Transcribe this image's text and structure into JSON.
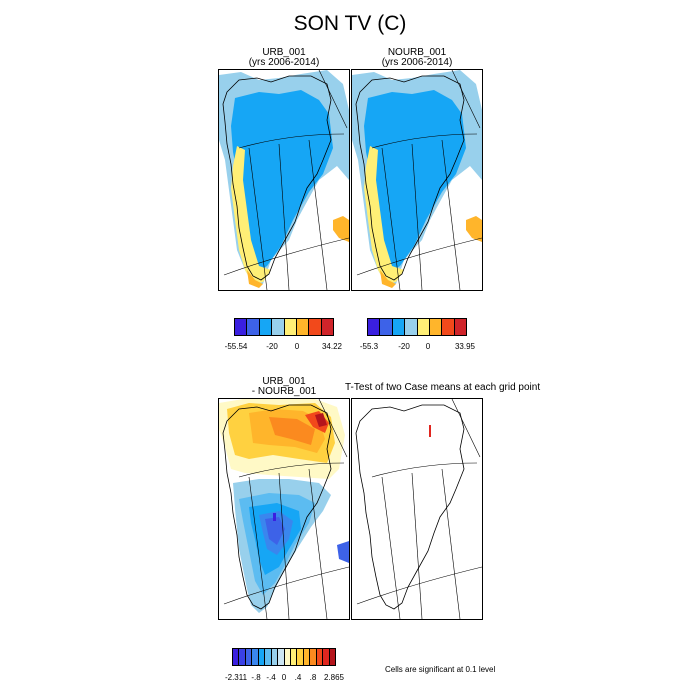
{
  "figure": {
    "title": "SON TV (C)"
  },
  "panels": {
    "urb": {
      "name": "URB_001",
      "period": "(yrs 2006-2014)"
    },
    "nourb": {
      "name": "NOURB_001",
      "period": "(yrs 2006-2014)"
    },
    "diff": {
      "line1": "URB_001",
      "line2": "- NOURB_001"
    },
    "ttest": {
      "title": "T-Test of two Case means at each grid point"
    }
  },
  "colorbars": {
    "urb": {
      "colors": [
        "#3a1fe0",
        "#3d62e8",
        "#16a6f5",
        "#98d0ec",
        "#ffef76",
        "#ffb52b",
        "#f2491b",
        "#d0242a"
      ],
      "labels": [
        "-55.54",
        "-20",
        "0",
        "34.22"
      ]
    },
    "nourb": {
      "colors": [
        "#3a1fe0",
        "#3d62e8",
        "#16a6f5",
        "#98d0ec",
        "#ffef76",
        "#ffb52b",
        "#f2491b",
        "#d0242a"
      ],
      "labels": [
        "-55.3",
        "-20",
        "0",
        "33.95"
      ]
    },
    "diff": {
      "colors": [
        "#3a1fe0",
        "#3a40e6",
        "#3d62e8",
        "#3a86ee",
        "#16a6f5",
        "#5cbcf1",
        "#98d0ec",
        "#cde6f3",
        "#fff9c6",
        "#ffef76",
        "#ffd140",
        "#ffb52b",
        "#fb8a1f",
        "#f2491b",
        "#e0261f",
        "#b4151c"
      ],
      "labels": [
        "-2.311",
        "-.8",
        "-.4",
        "0",
        ".4",
        ".8",
        "2.865"
      ]
    }
  },
  "notes": {
    "significance": "Cells are significant at 0.1 level"
  }
}
